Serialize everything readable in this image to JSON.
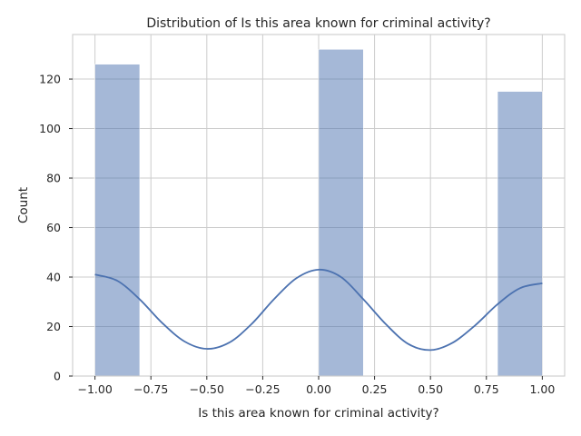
{
  "chart_data": {
    "type": "bar",
    "title": "Distribution of Is this area known for criminal activity?",
    "xlabel": "Is this area known for criminal activity?",
    "ylabel": "Count",
    "xlim": [
      -1.1,
      1.1
    ],
    "ylim": [
      0,
      138
    ],
    "grid": true,
    "color": "#4c72b0",
    "x_ticks": [
      "-1.00",
      "-0.75",
      "-0.50",
      "-0.25",
      "0.00",
      "0.25",
      "0.50",
      "0.75",
      "1.00"
    ],
    "y_ticks": [
      "0",
      "20",
      "40",
      "60",
      "80",
      "100",
      "120"
    ],
    "bins": [
      {
        "start": -1.0,
        "end": -0.8,
        "count": 126
      },
      {
        "start": 0.0,
        "end": 0.2,
        "count": 132
      },
      {
        "start": 0.8,
        "end": 1.0,
        "count": 115
      }
    ],
    "kde": {
      "x": [
        -1.0,
        -0.9,
        -0.8,
        -0.7,
        -0.6,
        -0.5,
        -0.4,
        -0.3,
        -0.2,
        -0.1,
        0.0,
        0.1,
        0.2,
        0.3,
        0.4,
        0.5,
        0.6,
        0.7,
        0.8,
        0.9,
        1.0
      ],
      "y": [
        41,
        38.5,
        31,
        21.5,
        14,
        11,
        13.5,
        21,
        31,
        39.5,
        43,
        40,
        31,
        21,
        13,
        10.5,
        13.5,
        20.5,
        29,
        35.5,
        37.5
      ]
    }
  }
}
